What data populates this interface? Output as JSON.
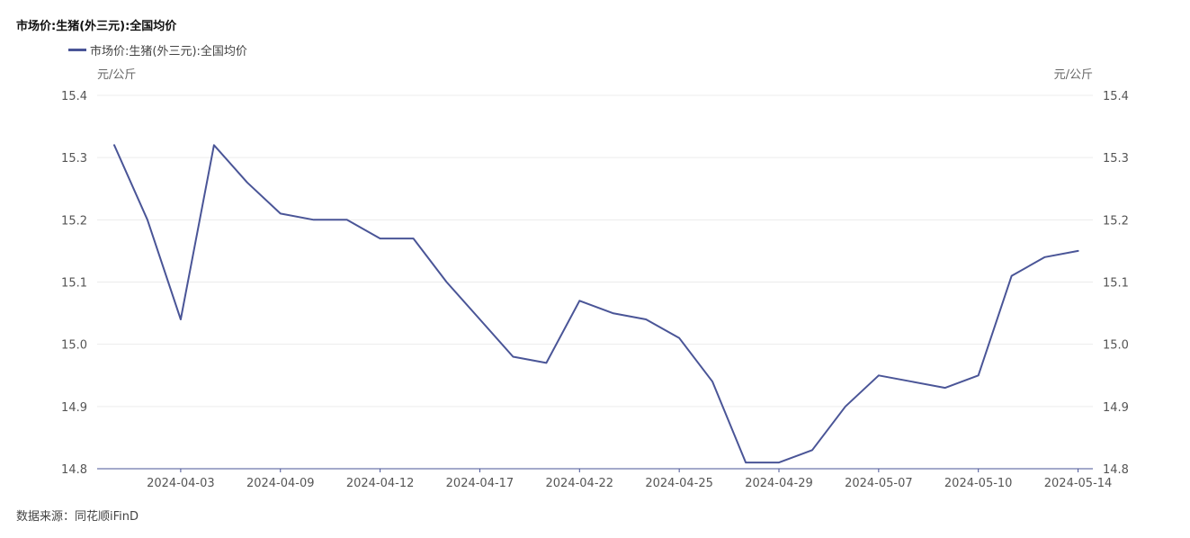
{
  "chart_data": {
    "type": "line",
    "title": "市场价:生猪(外三元):全国均价",
    "unit_left": "元/公斤",
    "unit_right": "元/公斤",
    "source": "数据来源：同花顺iFinD",
    "ylim": [
      14.8,
      15.4
    ],
    "yticks": [
      "14.8",
      "14.9",
      "15.0",
      "15.1",
      "15.2",
      "15.3",
      "15.4"
    ],
    "xtick_labels": [
      "2024-04-03",
      "2024-04-09",
      "2024-04-12",
      "2024-04-17",
      "2024-04-22",
      "2024-04-25",
      "2024-04-29",
      "2024-05-07",
      "2024-05-10",
      "2024-05-14"
    ],
    "xtick_point_index": [
      2,
      5,
      8,
      11,
      14,
      17,
      20,
      23,
      26,
      29
    ],
    "grid": true,
    "legend": "top-left",
    "color": "#4a5597",
    "series": [
      {
        "name": "市场价:生猪(外三元):全国均价",
        "values": [
          15.32,
          15.2,
          15.04,
          15.32,
          15.26,
          15.21,
          15.2,
          15.2,
          15.17,
          15.17,
          15.1,
          15.04,
          14.98,
          14.97,
          15.07,
          15.05,
          15.04,
          15.01,
          14.94,
          14.81,
          14.81,
          14.83,
          14.9,
          14.95,
          14.94,
          14.93,
          14.95,
          15.11,
          15.14,
          15.15
        ]
      }
    ]
  }
}
